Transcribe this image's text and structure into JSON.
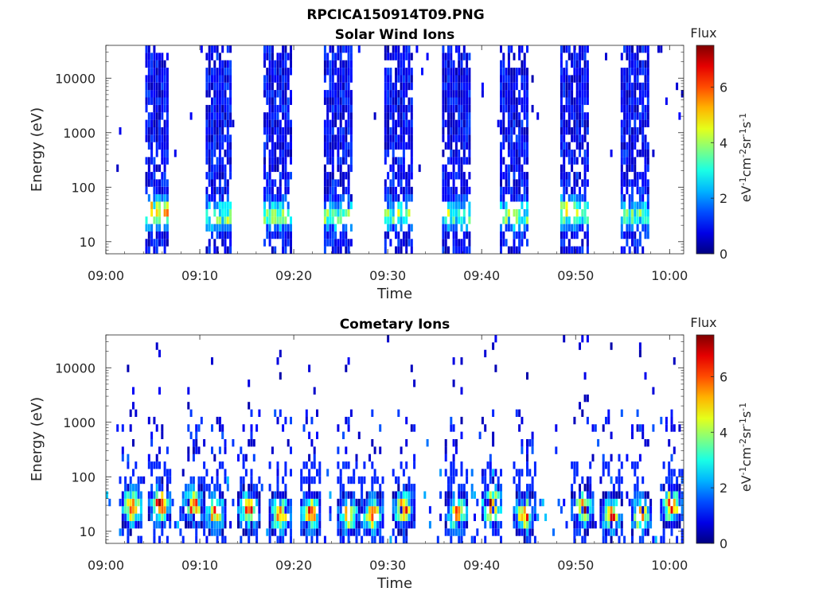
{
  "figure": {
    "title": "RPCICA150914T09.PNG"
  },
  "chart_data": [
    {
      "type": "heatmap",
      "title": "Solar Wind Ions",
      "xlabel": "Time",
      "ylabel": "Energy (eV)",
      "x_ticks": [
        "09:00",
        "09:10",
        "09:20",
        "09:30",
        "09:40",
        "09:50",
        "10:00"
      ],
      "xlim": [
        "09:00",
        "10:01:30"
      ],
      "y_scale": "log",
      "y_ticks": [
        "10",
        "100",
        "1000",
        "10000"
      ],
      "ylim": [
        6,
        40000
      ],
      "colorbar": {
        "title": "Flux",
        "label": "eV-1cm-2sr-1s-1",
        "ticks": [
          "0",
          "2",
          "4",
          "6"
        ],
        "range": [
          0,
          7.5
        ],
        "colormap": "jet"
      },
      "bursts": [
        {
          "start_min": 4.2,
          "end_min": 6.8,
          "peak_eV": 35,
          "peak_flux": 4.8
        },
        {
          "start_min": 10.6,
          "end_min": 13.4,
          "peak_eV": 30,
          "peak_flux": 3.5
        },
        {
          "start_min": 16.8,
          "end_min": 19.8,
          "peak_eV": 30,
          "peak_flux": 3.2
        },
        {
          "start_min": 23.3,
          "end_min": 26.3,
          "peak_eV": 30,
          "peak_flux": 3.2
        },
        {
          "start_min": 29.6,
          "end_min": 32.6,
          "peak_eV": 30,
          "peak_flux": 3.2
        },
        {
          "start_min": 35.8,
          "end_min": 38.8,
          "peak_eV": 30,
          "peak_flux": 3.2
        },
        {
          "start_min": 42.0,
          "end_min": 45.0,
          "peak_eV": 30,
          "peak_flux": 3.5
        },
        {
          "start_min": 48.5,
          "end_min": 51.3,
          "peak_eV": 35,
          "peak_flux": 4.0
        },
        {
          "start_min": 54.8,
          "end_min": 57.8,
          "peak_eV": 30,
          "peak_flux": 3.2
        }
      ]
    },
    {
      "type": "heatmap",
      "title": "Cometary Ions",
      "xlabel": "Time",
      "ylabel": "Energy (eV)",
      "x_ticks": [
        "09:00",
        "09:10",
        "09:20",
        "09:30",
        "09:40",
        "09:50",
        "10:00"
      ],
      "xlim": [
        "09:00",
        "10:01:30"
      ],
      "y_scale": "log",
      "y_ticks": [
        "10",
        "100",
        "1000",
        "10000"
      ],
      "ylim": [
        6,
        40000
      ],
      "colorbar": {
        "title": "Flux",
        "label": "eV-1cm-2sr-1s-1",
        "ticks": [
          "0",
          "2",
          "4",
          "6"
        ],
        "range": [
          0,
          7.5
        ],
        "colormap": "jet"
      },
      "bursts": [
        {
          "center_min": 2.8,
          "peak_eV": 28,
          "peak_flux": 6.5
        },
        {
          "center_min": 5.8,
          "peak_eV": 30,
          "peak_flux": 6.5
        },
        {
          "center_min": 9.3,
          "peak_eV": 30,
          "peak_flux": 6.0
        },
        {
          "center_min": 11.7,
          "peak_eV": 22,
          "peak_flux": 5.5
        },
        {
          "center_min": 15.2,
          "peak_eV": 25,
          "peak_flux": 6.0
        },
        {
          "center_min": 18.6,
          "peak_eV": 20,
          "peak_flux": 6.0
        },
        {
          "center_min": 21.8,
          "peak_eV": 22,
          "peak_flux": 6.0
        },
        {
          "center_min": 25.8,
          "peak_eV": 20,
          "peak_flux": 5.5
        },
        {
          "center_min": 28.4,
          "peak_eV": 20,
          "peak_flux": 6.3
        },
        {
          "center_min": 31.7,
          "peak_eV": 25,
          "peak_flux": 6.0
        },
        {
          "center_min": 37.4,
          "peak_eV": 22,
          "peak_flux": 6.0
        },
        {
          "center_min": 41.1,
          "peak_eV": 30,
          "peak_flux": 7.0
        },
        {
          "center_min": 44.6,
          "peak_eV": 20,
          "peak_flux": 6.0
        },
        {
          "center_min": 50.8,
          "peak_eV": 25,
          "peak_flux": 6.3
        },
        {
          "center_min": 53.8,
          "peak_eV": 20,
          "peak_flux": 6.0
        },
        {
          "center_min": 57.0,
          "peak_eV": 20,
          "peak_flux": 6.0
        },
        {
          "center_min": 60.2,
          "peak_eV": 30,
          "peak_flux": 6.3
        }
      ]
    }
  ]
}
